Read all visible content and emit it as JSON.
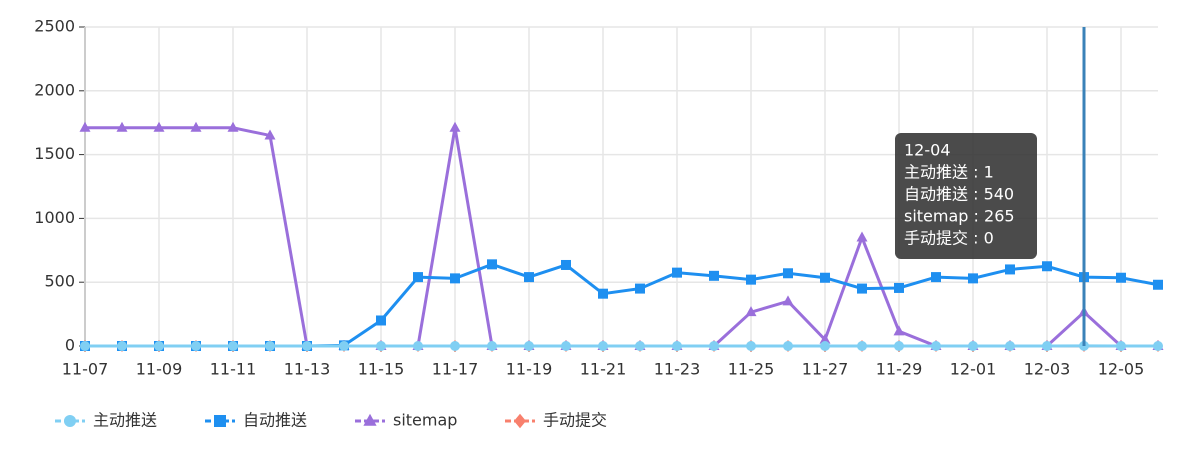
{
  "chart_data": {
    "type": "line",
    "categories": [
      "11-07",
      null,
      "11-09",
      null,
      "11-11",
      null,
      "11-13",
      null,
      "11-15",
      null,
      "11-17",
      null,
      "11-19",
      null,
      "11-21",
      null,
      "11-23",
      null,
      "11-25",
      null,
      "11-27",
      null,
      "11-29",
      null,
      "12-01",
      null,
      "12-03",
      null,
      "12-05",
      null
    ],
    "series": [
      {
        "name": "主动推送",
        "color": "#80cff3",
        "marker": "circle",
        "values": [
          0,
          0,
          0,
          0,
          0,
          0,
          0,
          0,
          0,
          0,
          0,
          0,
          0,
          0,
          0,
          0,
          0,
          0,
          0,
          0,
          0,
          0,
          0,
          0,
          0,
          0,
          0,
          1,
          0,
          0
        ]
      },
      {
        "name": "自动推送",
        "color": "#1e8ff0",
        "marker": "square",
        "values": [
          0,
          0,
          0,
          0,
          0,
          0,
          0,
          5,
          200,
          540,
          530,
          640,
          540,
          635,
          410,
          450,
          575,
          550,
          520,
          570,
          535,
          450,
          455,
          540,
          530,
          600,
          625,
          540,
          535,
          480
        ]
      },
      {
        "name": "sitemap",
        "color": "#9a6fdb",
        "marker": "triangle",
        "values": [
          1710,
          1710,
          1710,
          1710,
          1710,
          1650,
          0,
          0,
          0,
          0,
          1710,
          0,
          0,
          0,
          0,
          0,
          0,
          0,
          265,
          350,
          50,
          850,
          115,
          0,
          0,
          0,
          0,
          265,
          0,
          0
        ]
      },
      {
        "name": "手动提交",
        "color": "#f8806d",
        "marker": "diamond",
        "values": [
          0,
          0,
          0,
          0,
          0,
          0,
          0,
          0,
          0,
          0,
          0,
          0,
          0,
          0,
          0,
          0,
          0,
          0,
          0,
          0,
          0,
          0,
          0,
          0,
          0,
          0,
          0,
          0,
          0,
          0
        ]
      }
    ],
    "ylim": [
      0,
      2500
    ],
    "yticks": [
      0,
      500,
      1000,
      1500,
      2000,
      2500
    ],
    "grid": true,
    "legend": "bottom",
    "highlight_index": 27,
    "tooltip": {
      "title": "12-04",
      "lines": [
        "主动推送 : 1",
        "自动推送 : 540",
        "sitemap : 265",
        "手动提交 : 0"
      ]
    }
  }
}
